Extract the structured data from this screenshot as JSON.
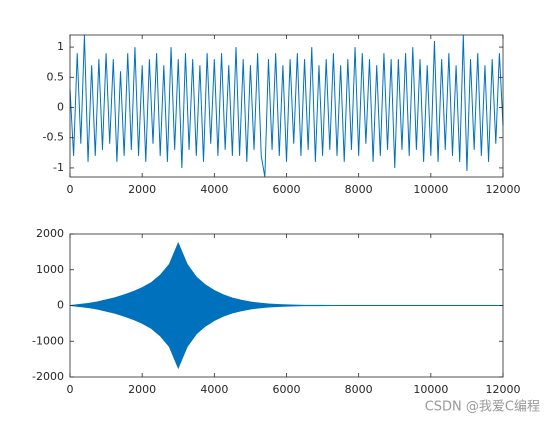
{
  "chart_data": [
    {
      "type": "line",
      "xlim": [
        0,
        12000
      ],
      "xticks": [
        0,
        2000,
        4000,
        6000,
        8000,
        10000,
        12000
      ],
      "ylim": [
        -1.15,
        1.2
      ],
      "yticks": [
        -1,
        -0.5,
        0,
        0.5,
        1
      ],
      "x": [
        0,
        100,
        200,
        300,
        400,
        500,
        600,
        700,
        800,
        900,
        1000,
        1100,
        1200,
        1300,
        1400,
        1500,
        1600,
        1700,
        1800,
        1900,
        2000,
        2100,
        2200,
        2300,
        2400,
        2500,
        2600,
        2700,
        2800,
        2900,
        3000,
        3100,
        3200,
        3300,
        3400,
        3500,
        3600,
        3700,
        3800,
        3900,
        4000,
        4100,
        4200,
        4300,
        4400,
        4500,
        4600,
        4700,
        4800,
        4900,
        5000,
        5100,
        5200,
        5300,
        5400,
        5500,
        5600,
        5700,
        5800,
        5900,
        6000,
        6100,
        6200,
        6300,
        6400,
        6500,
        6600,
        6700,
        6800,
        6900,
        7000,
        7100,
        7200,
        7300,
        7400,
        7500,
        7600,
        7700,
        7800,
        7900,
        8000,
        8100,
        8200,
        8300,
        8400,
        8500,
        8600,
        8700,
        8800,
        8900,
        9000,
        9100,
        9200,
        9300,
        9400,
        9500,
        9600,
        9700,
        9800,
        9900,
        10000,
        10100,
        10200,
        10300,
        10400,
        10500,
        10600,
        10700,
        10800,
        10900,
        11000,
        11100,
        11200,
        11300,
        11400,
        11500,
        11600,
        11700,
        11800,
        11900,
        12000
      ],
      "series": [
        {
          "color": "#0072bd",
          "values": [
            0.3,
            -0.8,
            0.9,
            -0.6,
            1.2,
            -0.9,
            0.7,
            -0.8,
            0.8,
            -0.7,
            0.9,
            -0.6,
            0.8,
            -0.9,
            0.6,
            -0.8,
            0.9,
            -0.7,
            1.0,
            -0.8,
            0.7,
            -0.9,
            0.8,
            -0.6,
            0.9,
            -0.8,
            0.7,
            -0.9,
            1.0,
            -0.7,
            0.8,
            -1.0,
            0.9,
            -0.7,
            0.8,
            -0.8,
            0.7,
            -0.9,
            0.9,
            -0.6,
            0.8,
            -0.8,
            0.9,
            -0.7,
            0.7,
            -0.8,
            1.0,
            -0.8,
            0.8,
            -0.9,
            0.7,
            -0.7,
            0.9,
            -0.8,
            -1.15,
            0.8,
            -0.7,
            0.9,
            -0.8,
            0.7,
            -0.9,
            0.8,
            -0.6,
            0.9,
            -0.8,
            0.8,
            -0.7,
            1.0,
            -0.9,
            0.7,
            -0.8,
            0.8,
            -0.7,
            0.9,
            -0.8,
            0.7,
            -0.9,
            0.8,
            -0.7,
            1.0,
            -0.8,
            0.9,
            -0.6,
            0.8,
            -0.9,
            0.7,
            -0.8,
            0.9,
            -0.7,
            0.8,
            -1.0,
            0.8,
            -0.7,
            0.9,
            -0.8,
            1.0,
            -0.7,
            0.8,
            -0.9,
            0.7,
            -0.8,
            1.1,
            -0.9,
            0.8,
            -0.7,
            0.9,
            -0.8,
            0.7,
            -0.9,
            1.2,
            -1.05,
            0.8,
            -0.7,
            0.9,
            -0.8,
            0.7,
            -0.9,
            0.8,
            -0.6,
            0.9,
            -0.3
          ]
        }
      ]
    },
    {
      "type": "area",
      "xlim": [
        0,
        12000
      ],
      "xticks": [
        0,
        2000,
        4000,
        6000,
        8000,
        10000,
        12000
      ],
      "ylim": [
        -2000,
        2000
      ],
      "yticks": [
        -2000,
        -1000,
        0,
        1000,
        2000
      ],
      "x": [
        0,
        250,
        500,
        750,
        1000,
        1250,
        1500,
        1750,
        2000,
        2250,
        2500,
        2750,
        3000,
        3250,
        3500,
        3750,
        4000,
        4250,
        4500,
        4750,
        5000,
        5250,
        5500,
        5750,
        6000,
        6250,
        6500,
        6750,
        7000,
        7250,
        7500,
        7750,
        8000,
        8250,
        8500,
        8750,
        9000,
        9250,
        9500,
        9750,
        10000,
        10250,
        10500,
        10750,
        11000,
        11250,
        11500,
        11750,
        12000
      ],
      "series": [
        {
          "color": "#0072bd",
          "values": [
            0,
            30,
            60,
            100,
            160,
            220,
            300,
            390,
            500,
            640,
            850,
            1150,
            1750,
            1150,
            800,
            580,
            420,
            300,
            210,
            150,
            100,
            70,
            45,
            30,
            20,
            12,
            8,
            6,
            5,
            4,
            4,
            3,
            3,
            3,
            2,
            2,
            2,
            2,
            2,
            2,
            2,
            2,
            2,
            2,
            2,
            2,
            2,
            2,
            2
          ]
        },
        {
          "color": "#0072bd",
          "values": [
            0,
            -30,
            -60,
            -100,
            -160,
            -220,
            -300,
            -390,
            -500,
            -640,
            -850,
            -1150,
            -1750,
            -1150,
            -800,
            -580,
            -420,
            -300,
            -210,
            -150,
            -100,
            -70,
            -45,
            -30,
            -20,
            -12,
            -8,
            -6,
            -5,
            -4,
            -4,
            -3,
            -3,
            -3,
            -2,
            -2,
            -2,
            -2,
            -2,
            -2,
            -2,
            -2,
            -2,
            -2,
            -2,
            -2,
            -2,
            -2,
            -2
          ]
        }
      ]
    }
  ],
  "watermark": "CSDN @我爱C编程"
}
